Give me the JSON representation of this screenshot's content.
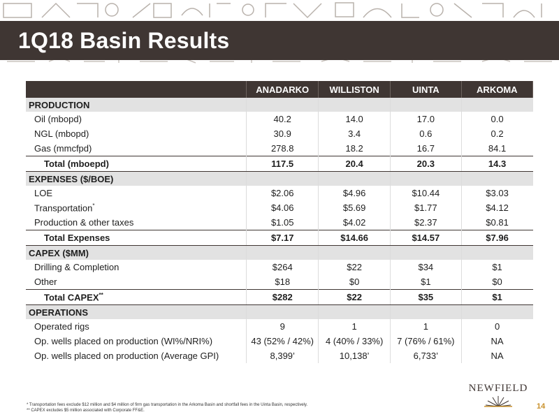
{
  "header": {
    "title": "1Q18 Basin Results"
  },
  "table": {
    "columns": [
      "ANADARKO",
      "WILLISTON",
      "UINTA",
      "ARKOMA"
    ],
    "sections": [
      {
        "title": "PRODUCTION",
        "rows": [
          {
            "label": "Oil (mbopd)",
            "sup": "",
            "values": [
              "40.2",
              "14.0",
              "17.0",
              "0.0"
            ],
            "total": false
          },
          {
            "label": "NGL (mbopd)",
            "sup": "",
            "values": [
              "30.9",
              "3.4",
              "0.6",
              "0.2"
            ],
            "total": false
          },
          {
            "label": "Gas (mmcfpd)",
            "sup": "",
            "values": [
              "278.8",
              "18.2",
              "16.7",
              "84.1"
            ],
            "total": false
          },
          {
            "label": "Total (mboepd)",
            "sup": "",
            "values": [
              "117.5",
              "20.4",
              "20.3",
              "14.3"
            ],
            "total": true
          }
        ]
      },
      {
        "title": "EXPENSES ($/BOE)",
        "rows": [
          {
            "label": "LOE",
            "sup": "",
            "values": [
              "$2.06",
              "$4.96",
              "$10.44",
              "$3.03"
            ],
            "total": false
          },
          {
            "label": "Transportation",
            "sup": "*",
            "values": [
              "$4.06",
              "$5.69",
              "$1.77",
              "$4.12"
            ],
            "total": false
          },
          {
            "label": "Production & other taxes",
            "sup": "",
            "values": [
              "$1.05",
              "$4.02",
              "$2.37",
              "$0.81"
            ],
            "total": false
          },
          {
            "label": "Total Expenses",
            "sup": "",
            "values": [
              "$7.17",
              "$14.66",
              "$14.57",
              "$7.96"
            ],
            "total": true
          }
        ]
      },
      {
        "title": "CAPEX ($MM)",
        "rows": [
          {
            "label": "Drilling & Completion",
            "sup": "",
            "values": [
              "$264",
              "$22",
              "$34",
              "$1"
            ],
            "total": false
          },
          {
            "label": "Other",
            "sup": "",
            "values": [
              "$18",
              "$0",
              "$1",
              "$0"
            ],
            "total": false
          },
          {
            "label": "Total CAPEX",
            "sup": "**",
            "values": [
              "$282",
              "$22",
              "$35",
              "$1"
            ],
            "total": true
          }
        ]
      },
      {
        "title": "OPERATIONS",
        "rows": [
          {
            "label": "Operated rigs",
            "sup": "",
            "values": [
              "9",
              "1",
              "1",
              "0"
            ],
            "total": false
          },
          {
            "label": "Op. wells placed on production (WI%/NRI%)",
            "sup": "",
            "values": [
              "43 (52% / 42%)",
              "4 (40% / 33%)",
              "7 (76% / 61%)",
              "NA"
            ],
            "total": false
          },
          {
            "label": "Op. wells placed on production (Average GPI)",
            "sup": "",
            "values": [
              "8,399’",
              "10,138’",
              "6,733’",
              "NA"
            ],
            "total": false
          }
        ]
      }
    ]
  },
  "footnotes": [
    "* Transportation fees exclude $12 million and $4 million of firm gas transportation in the Arkoma Basin and shortfall fees in the Uinta Basin, respectively.",
    "** CAPEX excludes $5 million associated with Corporate FF&E."
  ],
  "logo": {
    "text": "NEWFIELD",
    "icon": "sunburst-logo-icon"
  },
  "page_number": "14",
  "colors": {
    "header_bg": "#3f3633",
    "section_bg": "#e2e2e2",
    "accent": "#c9912c"
  }
}
